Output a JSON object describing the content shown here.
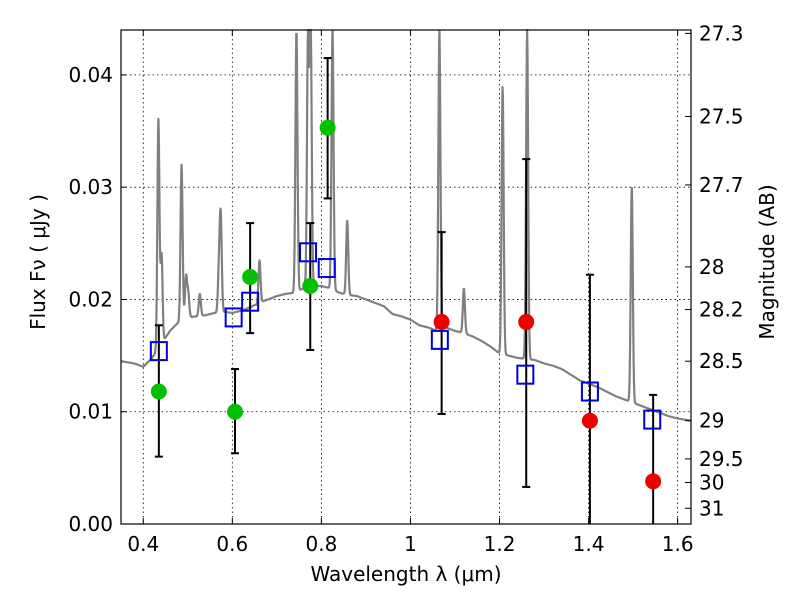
{
  "chart_data": {
    "type": "scatter",
    "xlabel": "Wavelength  λ (μm)",
    "ylabel": "Flux  Fν  ( μJy )",
    "ylabel_right": "Magnitude (AB)",
    "xlim": [
      0.35,
      1.63
    ],
    "ylim": [
      0.0,
      0.044
    ],
    "grid": true,
    "x_ticks": [
      {
        "value": 0.4,
        "label": "0.4"
      },
      {
        "value": 0.6,
        "label": "0.6"
      },
      {
        "value": 0.8,
        "label": "0.8"
      },
      {
        "value": 1.0,
        "label": "1"
      },
      {
        "value": 1.2,
        "label": "1.2"
      },
      {
        "value": 1.4,
        "label": "1.4"
      },
      {
        "value": 1.6,
        "label": "1.6"
      }
    ],
    "y_ticks": [
      {
        "value": 0.0,
        "label": "0.00"
      },
      {
        "value": 0.01,
        "label": "0.01"
      },
      {
        "value": 0.02,
        "label": "0.02"
      },
      {
        "value": 0.03,
        "label": "0.03"
      },
      {
        "value": 0.04,
        "label": "0.04"
      }
    ],
    "right_ticks": [
      {
        "flux": 0.0437,
        "label": "27.3"
      },
      {
        "flux": 0.0363,
        "label": "27.5"
      },
      {
        "flux": 0.0302,
        "label": "27.7"
      },
      {
        "flux": 0.0229,
        "label": "28"
      },
      {
        "flux": 0.0191,
        "label": "28.2"
      },
      {
        "flux": 0.0145,
        "label": "28.5"
      },
      {
        "flux": 0.0092,
        "label": "29"
      },
      {
        "flux": 0.0058,
        "label": "29.5"
      },
      {
        "flux": 0.0037,
        "label": "30"
      },
      {
        "flux": 0.0014,
        "label": "31"
      }
    ],
    "colors": {
      "model": "#808080",
      "green": "#00c000",
      "red": "#ee0000",
      "blue_square": "#0000dd",
      "errorbar": "#000000",
      "grid": "#000000"
    },
    "model_spectrum": {
      "continuum": [
        [
          0.35,
          0.0145
        ],
        [
          0.38,
          0.0143
        ],
        [
          0.4,
          0.014
        ],
        [
          0.42,
          0.0148
        ],
        [
          0.44,
          0.016
        ],
        [
          0.46,
          0.0172
        ],
        [
          0.48,
          0.018
        ],
        [
          0.5,
          0.0184
        ],
        [
          0.52,
          0.0185
        ],
        [
          0.54,
          0.0186
        ],
        [
          0.56,
          0.0188
        ],
        [
          0.58,
          0.0189
        ],
        [
          0.6,
          0.0188
        ],
        [
          0.62,
          0.019
        ],
        [
          0.64,
          0.0193
        ],
        [
          0.66,
          0.0197
        ],
        [
          0.68,
          0.02
        ],
        [
          0.7,
          0.0203
        ],
        [
          0.72,
          0.0205
        ],
        [
          0.74,
          0.0206
        ],
        [
          0.76,
          0.021
        ],
        [
          0.78,
          0.0212
        ],
        [
          0.8,
          0.0212
        ],
        [
          0.82,
          0.021
        ],
        [
          0.84,
          0.0206
        ],
        [
          0.86,
          0.0204
        ],
        [
          0.88,
          0.0203
        ],
        [
          0.9,
          0.02
        ],
        [
          0.92,
          0.0197
        ],
        [
          0.94,
          0.0194
        ],
        [
          0.96,
          0.0187
        ],
        [
          0.98,
          0.0185
        ],
        [
          1.0,
          0.0182
        ],
        [
          1.02,
          0.0177
        ],
        [
          1.04,
          0.0175
        ],
        [
          1.06,
          0.0172
        ],
        [
          1.08,
          0.0175
        ],
        [
          1.1,
          0.0172
        ],
        [
          1.12,
          0.017
        ],
        [
          1.14,
          0.0167
        ],
        [
          1.16,
          0.0163
        ],
        [
          1.18,
          0.0158
        ],
        [
          1.2,
          0.0152
        ],
        [
          1.22,
          0.015
        ],
        [
          1.24,
          0.0148
        ],
        [
          1.26,
          0.0147
        ],
        [
          1.28,
          0.0146
        ],
        [
          1.3,
          0.0143
        ],
        [
          1.32,
          0.0141
        ],
        [
          1.34,
          0.0138
        ],
        [
          1.36,
          0.0133
        ],
        [
          1.38,
          0.0128
        ],
        [
          1.4,
          0.0125
        ],
        [
          1.42,
          0.0122
        ],
        [
          1.44,
          0.0118
        ],
        [
          1.46,
          0.0114
        ],
        [
          1.48,
          0.0111
        ],
        [
          1.5,
          0.0108
        ],
        [
          1.52,
          0.0105
        ],
        [
          1.54,
          0.0102
        ],
        [
          1.56,
          0.0099
        ],
        [
          1.58,
          0.0096
        ],
        [
          1.6,
          0.0094
        ],
        [
          1.63,
          0.0092
        ]
      ],
      "lines": [
        {
          "center": 0.434,
          "peak": 0.036
        },
        {
          "center": 0.441,
          "peak": 0.024
        },
        {
          "center": 0.486,
          "peak": 0.032
        },
        {
          "center": 0.496,
          "peak": 0.022
        },
        {
          "center": 0.501,
          "peak": 0.0205
        },
        {
          "center": 0.527,
          "peak": 0.0205
        },
        {
          "center": 0.57,
          "peak": 0.0225
        },
        {
          "center": 0.574,
          "peak": 0.0272
        },
        {
          "center": 0.656,
          "peak": 0.0195
        },
        {
          "center": 0.661,
          "peak": 0.0235
        },
        {
          "center": 0.744,
          "peak": 0.044
        },
        {
          "center": 0.77,
          "peak": 0.044
        },
        {
          "center": 0.776,
          "peak": 0.044
        },
        {
          "center": 0.825,
          "peak": 0.044
        },
        {
          "center": 0.858,
          "peak": 0.027
        },
        {
          "center": 1.065,
          "peak": 0.044
        },
        {
          "center": 1.12,
          "peak": 0.021
        },
        {
          "center": 1.207,
          "peak": 0.039
        },
        {
          "center": 1.262,
          "peak": 0.044
        },
        {
          "center": 1.497,
          "peak": 0.03
        }
      ]
    },
    "series": [
      {
        "marker": "circle",
        "color": "green",
        "points": [
          {
            "x": 0.435,
            "y": 0.0118,
            "err": [
              0.006,
              0.0177
            ]
          },
          {
            "x": 0.606,
            "y": 0.01,
            "err": [
              0.0063,
              0.0138
            ]
          },
          {
            "x": 0.64,
            "y": 0.022,
            "err": [
              0.017,
              0.0268
            ]
          },
          {
            "x": 0.775,
            "y": 0.0212,
            "err": [
              0.0155,
              0.0268
            ]
          },
          {
            "x": 0.814,
            "y": 0.0353,
            "err": [
              0.029,
              0.0415
            ]
          }
        ]
      },
      {
        "marker": "circle",
        "color": "red",
        "points": [
          {
            "x": 1.07,
            "y": 0.018,
            "err": [
              0.0098,
              0.026
            ]
          },
          {
            "x": 1.26,
            "y": 0.018,
            "err": [
              0.0033,
              0.0325
            ]
          },
          {
            "x": 1.403,
            "y": 0.0092,
            "err": [
              0.0,
              0.0222
            ]
          },
          {
            "x": 1.545,
            "y": 0.0038,
            "err": [
              0.0,
              0.0115
            ]
          }
        ]
      },
      {
        "marker": "square",
        "color": "blue_square",
        "points": [
          {
            "x": 0.435,
            "y": 0.0154
          },
          {
            "x": 0.603,
            "y": 0.0184
          },
          {
            "x": 0.64,
            "y": 0.0198
          },
          {
            "x": 0.77,
            "y": 0.0242
          },
          {
            "x": 0.812,
            "y": 0.0228
          },
          {
            "x": 1.066,
            "y": 0.0164
          },
          {
            "x": 1.258,
            "y": 0.0133
          },
          {
            "x": 1.403,
            "y": 0.0118
          },
          {
            "x": 1.543,
            "y": 0.0093
          }
        ]
      }
    ]
  }
}
